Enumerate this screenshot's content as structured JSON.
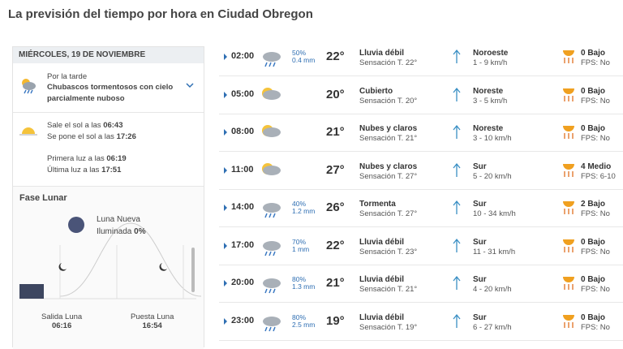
{
  "title": "La previsión del tiempo por hora en Ciudad Obregon",
  "day": {
    "header": "MIÉRCOLES, 19 DE NOVIEMBRE",
    "period": "Por la tarde",
    "description": "Chubascos tormentosos con cielo parcialmente nuboso"
  },
  "sun": {
    "rise_label": "Sale el sol a las",
    "rise": "06:43",
    "set_label": "Se pone el sol a las",
    "set": "17:26",
    "first_light_label": "Primera luz a las",
    "first_light": "06:19",
    "last_light_label": "Última luz a las",
    "last_light": "17:51"
  },
  "moon": {
    "title": "Fase Lunar",
    "phase": "Luna Nueva",
    "illumination_label": "Iluminada",
    "illumination": "0%",
    "rise_label": "Salida Luna",
    "rise": "06:16",
    "set_label": "Puesta Luna",
    "set": "16:54"
  },
  "rows": [
    {
      "time": "02:00",
      "probability": "50%",
      "amount": "0.4 mm",
      "temp": "22°",
      "description": "Lluvia débil",
      "feels": "Sensación T. 22°",
      "wind_dir": "Noroeste",
      "wind": "1 - 9 km/h",
      "uv": "0 Bajo",
      "fps": "FPS: No"
    },
    {
      "time": "05:00",
      "temp": "20°",
      "description": "Cubierto",
      "feels": "Sensación T. 20°",
      "wind_dir": "Noreste",
      "wind": "3 - 5 km/h",
      "uv": "0 Bajo",
      "fps": "FPS: No"
    },
    {
      "time": "08:00",
      "temp": "21°",
      "description": "Nubes y claros",
      "feels": "Sensación T. 21°",
      "wind_dir": "Noreste",
      "wind": "3 - 10 km/h",
      "uv": "0 Bajo",
      "fps": "FPS: No"
    },
    {
      "time": "11:00",
      "temp": "27°",
      "description": "Nubes y claros",
      "feels": "Sensación T. 27°",
      "wind_dir": "Sur",
      "wind": "5 - 20 km/h",
      "uv": "4 Medio",
      "fps": "FPS: 6-10"
    },
    {
      "time": "14:00",
      "probability": "40%",
      "amount": "1.2 mm",
      "temp": "26°",
      "description": "Tormenta",
      "feels": "Sensación T. 27°",
      "wind_dir": "Sur",
      "wind": "10 - 34 km/h",
      "uv": "2 Bajo",
      "fps": "FPS: No"
    },
    {
      "time": "17:00",
      "probability": "70%",
      "amount": "1 mm",
      "temp": "22°",
      "description": "Lluvia débil",
      "feels": "Sensación T. 23°",
      "wind_dir": "Sur",
      "wind": "11 - 31 km/h",
      "uv": "0 Bajo",
      "fps": "FPS: No"
    },
    {
      "time": "20:00",
      "probability": "80%",
      "amount": "1.3 mm",
      "temp": "21°",
      "description": "Lluvia débil",
      "feels": "Sensación T. 21°",
      "wind_dir": "Sur",
      "wind": "4 - 20 km/h",
      "uv": "0 Bajo",
      "fps": "FPS: No"
    },
    {
      "time": "23:00",
      "probability": "80%",
      "amount": "2.5 mm",
      "temp": "19°",
      "description": "Lluvia débil",
      "feels": "Sensación T. 19°",
      "wind_dir": "Sur",
      "wind": "6 - 27 km/h",
      "uv": "0 Bajo",
      "fps": "FPS: No"
    }
  ]
}
